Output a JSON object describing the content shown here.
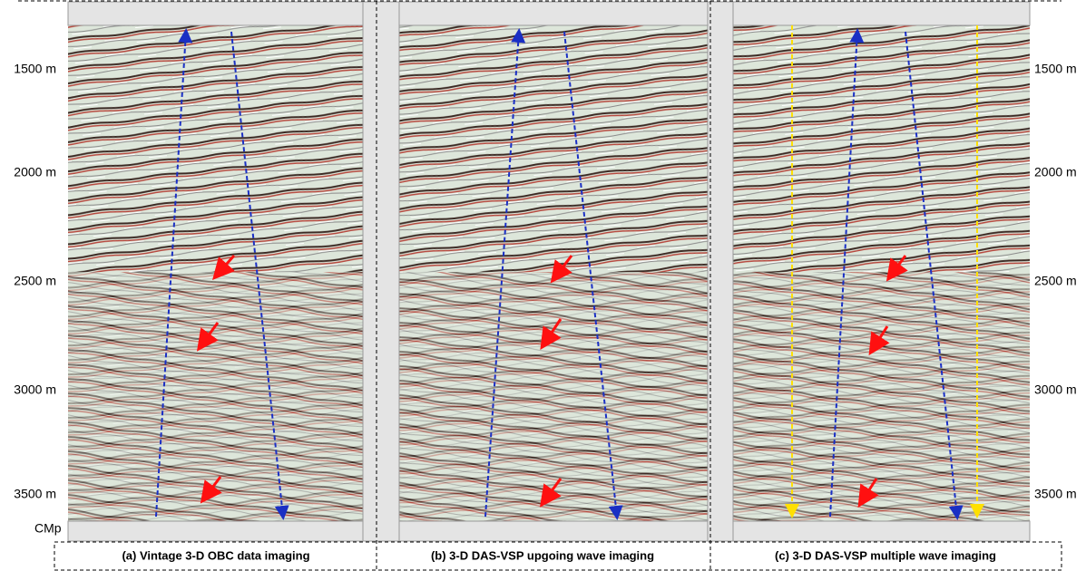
{
  "depth_labels_left": [
    "1500 m",
    "2000 m",
    "2500 m",
    "3000 m",
    "3500 m"
  ],
  "depth_labels_right": [
    "1500 m",
    "2000 m",
    "2500 m",
    "3000 m",
    "3500 m"
  ],
  "cmp_label": "CMp",
  "panels": [
    {
      "caption": "(a) Vintage 3-D OBC data imaging"
    },
    {
      "caption": "(b) 3-D DAS-VSP upgoing wave imaging"
    },
    {
      "caption": "(c) 3-D DAS-VSP multiple wave imaging"
    }
  ]
}
